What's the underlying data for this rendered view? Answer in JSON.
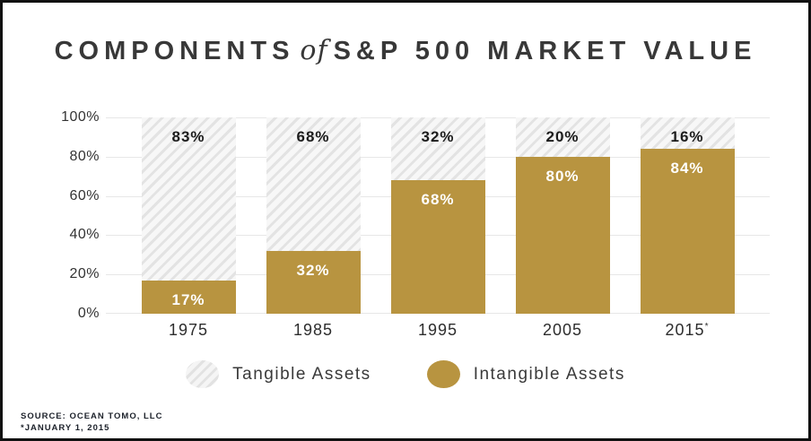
{
  "title": {
    "part1": "COMPONENTS",
    "connector": "of",
    "part2": "S&P 500 MARKET VALUE"
  },
  "chart_data": {
    "type": "bar",
    "stacked": true,
    "title": "COMPONENTS of S&P 500 MARKET VALUE",
    "categories": [
      "1975",
      "1985",
      "1995",
      "2005",
      "2015*"
    ],
    "series": [
      {
        "name": "Intangible Assets",
        "style": "solid-gold",
        "color": "#b89440",
        "values": [
          17,
          32,
          68,
          80,
          84
        ]
      },
      {
        "name": "Tangible Assets",
        "style": "diagonal-hatch",
        "values": [
          83,
          68,
          32,
          20,
          16
        ]
      }
    ],
    "ylim": [
      0,
      100
    ],
    "yticks": [
      "100%",
      "80%",
      "60%",
      "40%",
      "20%",
      "0%"
    ],
    "grid": true,
    "data_labels": true,
    "legend_position": "bottom",
    "source": "SOURCE: OCEAN TOMO, LLC",
    "footnote": "*JANUARY 1, 2015"
  },
  "yaxis": {
    "tick0": "100%",
    "tick1": "80%",
    "tick2": "60%",
    "tick3": "40%",
    "tick4": "20%",
    "tick5": "0%"
  },
  "bars": [
    {
      "year": "1975",
      "suffix": "",
      "tangible_pct": 83,
      "intangible_pct": 17,
      "tangible_label": "83%",
      "intangible_label": "17%"
    },
    {
      "year": "1985",
      "suffix": "",
      "tangible_pct": 68,
      "intangible_pct": 32,
      "tangible_label": "68%",
      "intangible_label": "32%"
    },
    {
      "year": "1995",
      "suffix": "",
      "tangible_pct": 32,
      "intangible_pct": 68,
      "tangible_label": "32%",
      "intangible_label": "68%"
    },
    {
      "year": "2005",
      "suffix": "",
      "tangible_pct": 20,
      "intangible_pct": 80,
      "tangible_label": "20%",
      "intangible_label": "80%"
    },
    {
      "year": "2015",
      "suffix": "*",
      "tangible_pct": 16,
      "intangible_pct": 84,
      "tangible_label": "16%",
      "intangible_label": "84%"
    }
  ],
  "legend": {
    "tangible_label": "Tangible Assets",
    "intangible_label": "Intangible Assets"
  },
  "footer": {
    "source_line": "SOURCE: OCEAN TOMO, LLC",
    "note_line": "*JANUARY 1, 2015"
  },
  "colors": {
    "intangible_gold": "#b89440",
    "hatch_stripe": "#e3e3e3",
    "hatch_background": "#f7f7f7",
    "gridline": "#e7e7e7",
    "frame_border": "#111111",
    "title_text": "#383838"
  }
}
